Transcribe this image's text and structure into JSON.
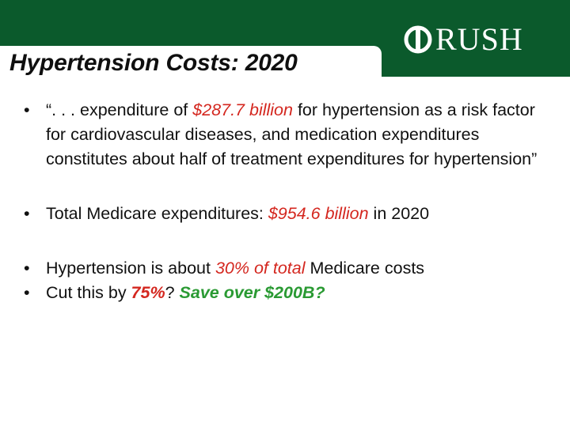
{
  "header": {
    "title": "Hypertension Costs:  2020",
    "logo_text": "RUSH"
  },
  "bullets": [
    {
      "marker": "•",
      "pre": "“. . . expenditure of ",
      "em": "$287.7 billion",
      "post": " for hypertension as a risk factor for cardiovascular diseases, and medication expenditures constitutes about half of treatment expenditures for hypertension”"
    },
    {
      "marker": "•",
      "pre": "Total Medicare expenditures: ",
      "em": "$954.6 billion",
      "post": " in 2020"
    },
    {
      "marker": "•",
      "pre": "Hypertension is about ",
      "em": "30% of total",
      "post": " Medicare costs"
    },
    {
      "marker": "•",
      "pre": "Cut this by ",
      "em": "75%",
      "mid": "?  ",
      "em2": "Save over $200B?"
    }
  ],
  "colors": {
    "brand_green": "#0b5a2c",
    "highlight_red": "#d4271f",
    "highlight_green": "#2a9a33"
  }
}
